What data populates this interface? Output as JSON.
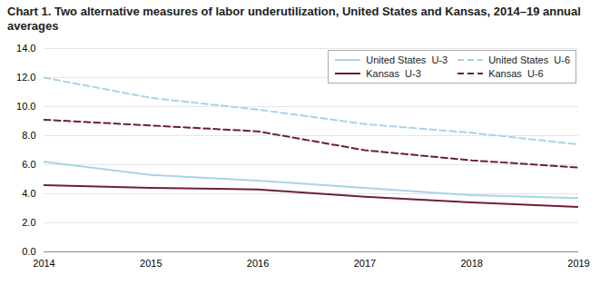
{
  "chart_data": {
    "type": "line",
    "title": "Chart 1. Two alternative measures of labor underutilization, United States and Kansas, 2014–19 annual averages",
    "x": [
      2014,
      2015,
      2016,
      2017,
      2018,
      2019
    ],
    "series": [
      {
        "name": "United States  U-3",
        "color": "#a8d4e6",
        "line_style": "solid",
        "values": [
          6.2,
          5.3,
          4.9,
          4.4,
          3.9,
          3.7
        ]
      },
      {
        "name": "United States  U-6",
        "color": "#a8d4e6",
        "line_style": "dashed",
        "values": [
          12.0,
          10.6,
          9.8,
          8.8,
          8.2,
          7.4
        ]
      },
      {
        "name": "Kansas  U-3",
        "color": "#6b1f3a",
        "line_style": "solid",
        "values": [
          4.6,
          4.4,
          4.3,
          3.8,
          3.4,
          3.1
        ]
      },
      {
        "name": "Kansas  U-6",
        "color": "#6b1f3a",
        "line_style": "dashed",
        "values": [
          9.1,
          8.7,
          8.3,
          7.0,
          6.3,
          5.8
        ]
      }
    ],
    "xlim": [
      2014,
      2019
    ],
    "xticks": [
      2014,
      2015,
      2016,
      2017,
      2018,
      2019
    ],
    "ylim": [
      0,
      14.0
    ],
    "yticks": [
      {
        "value": 0,
        "label": "0.0"
      },
      {
        "value": 2,
        "label": "2.0"
      },
      {
        "value": 4,
        "label": "4.0"
      },
      {
        "value": 6,
        "label": "6.0"
      },
      {
        "value": 8,
        "label": "8.0"
      },
      {
        "value": 10,
        "label": "10.0"
      },
      {
        "value": 12,
        "label": "12.0"
      },
      {
        "value": 14,
        "label": "14.0"
      }
    ],
    "grid": true,
    "legend": "upper right"
  }
}
